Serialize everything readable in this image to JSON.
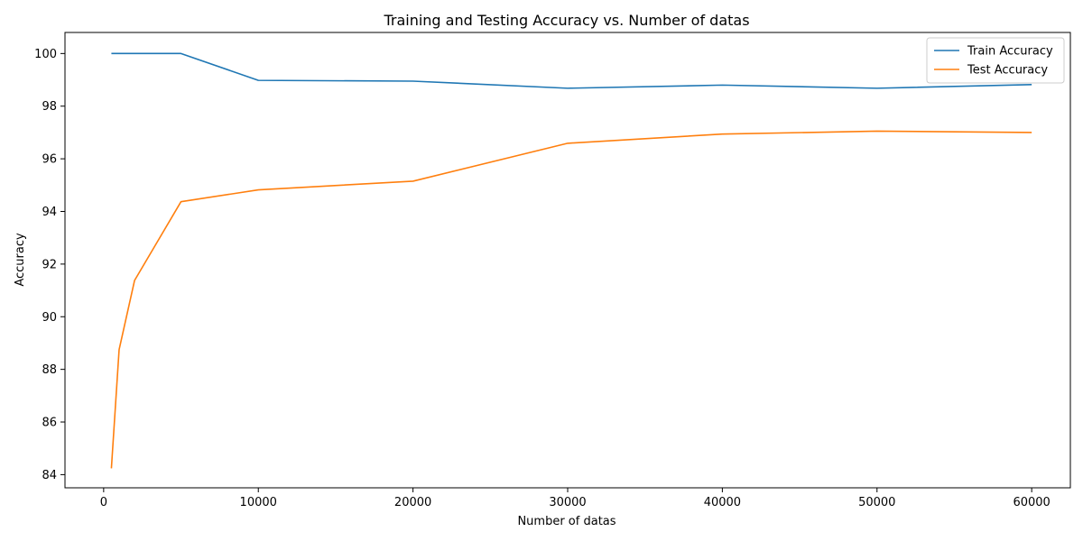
{
  "chart_data": {
    "type": "line",
    "title": "Training and Testing Accuracy vs. Number of datas",
    "xlabel": "Number of datas",
    "ylabel": "Accuracy",
    "xlim": [
      -2500,
      62500
    ],
    "ylim": [
      83.5,
      100.8
    ],
    "xticks": [
      0,
      10000,
      20000,
      30000,
      40000,
      50000,
      60000
    ],
    "yticks": [
      84,
      86,
      88,
      90,
      92,
      94,
      96,
      98,
      100
    ],
    "grid": false,
    "legend_position": "top-right",
    "series": [
      {
        "name": "Train Accuracy",
        "color": "#1f77b4",
        "x": [
          500,
          1000,
          2000,
          5000,
          10000,
          20000,
          30000,
          40000,
          50000,
          60000
        ],
        "y": [
          100.0,
          100.0,
          100.0,
          100.0,
          98.98,
          98.95,
          98.68,
          98.8,
          98.68,
          98.82
        ]
      },
      {
        "name": "Test Accuracy",
        "color": "#ff7f0e",
        "x": [
          500,
          1000,
          2000,
          5000,
          10000,
          20000,
          30000,
          40000,
          50000,
          60000
        ],
        "y": [
          84.24,
          88.75,
          91.38,
          94.37,
          94.82,
          95.15,
          96.59,
          96.94,
          97.05,
          97.0
        ]
      }
    ]
  }
}
